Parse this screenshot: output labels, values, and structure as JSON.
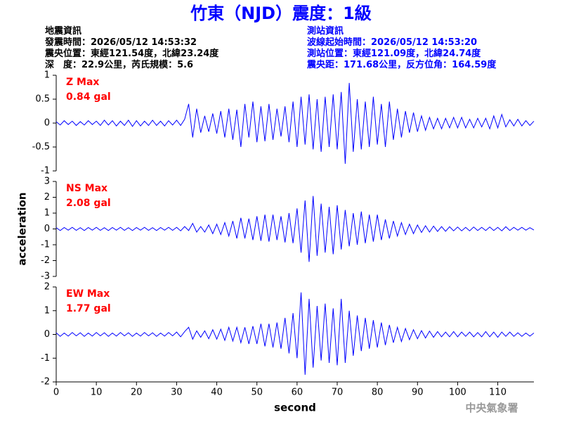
{
  "header": {
    "title": "竹東（NJD）震度：1級",
    "left": [
      "地震資訊",
      "發震時間：2026/05/12 14:53:32",
      "震央位置：東經121.54度，北緯23.24度",
      "深　度：22.9公里，芮氏規模：5.6"
    ],
    "right": [
      "測站資訊",
      "波線起始時間：2026/05/12 14:53:20",
      "測站位置：東經121.09度，北緯24.74度",
      "震央距：171.68公里，反方位角：164.59度"
    ]
  },
  "chart_data": [
    {
      "type": "line",
      "annotation": [
        "Z Max",
        "0.84 gal"
      ],
      "xlim": [
        0,
        119
      ],
      "ylim": [
        -1,
        1
      ],
      "yticks": [
        -1,
        -0.5,
        0,
        0.5,
        1
      ],
      "x": [
        0,
        1,
        2,
        3,
        4,
        5,
        6,
        7,
        8,
        9,
        10,
        11,
        12,
        13,
        14,
        15,
        16,
        17,
        18,
        19,
        20,
        21,
        22,
        23,
        24,
        25,
        26,
        27,
        28,
        29,
        30,
        31,
        32,
        33,
        34,
        35,
        36,
        37,
        38,
        39,
        40,
        41,
        42,
        43,
        44,
        45,
        46,
        47,
        48,
        49,
        50,
        51,
        52,
        53,
        54,
        55,
        56,
        57,
        58,
        59,
        60,
        61,
        62,
        63,
        64,
        65,
        66,
        67,
        68,
        69,
        70,
        71,
        72,
        73,
        74,
        75,
        76,
        77,
        78,
        79,
        80,
        81,
        82,
        83,
        84,
        85,
        86,
        87,
        88,
        89,
        90,
        91,
        92,
        93,
        94,
        95,
        96,
        97,
        98,
        99,
        100,
        101,
        102,
        103,
        104,
        105,
        106,
        107,
        108,
        109,
        110,
        111,
        112,
        113,
        114,
        115,
        116,
        117,
        118,
        119
      ],
      "series": [
        {
          "color": "#0000ff",
          "values": [
            0.03,
            -0.04,
            0.05,
            -0.03,
            0.04,
            -0.05,
            0.03,
            -0.04,
            0.05,
            -0.03,
            0.04,
            -0.05,
            0.06,
            -0.04,
            0.05,
            -0.06,
            0.04,
            -0.05,
            0.06,
            -0.07,
            0.05,
            -0.06,
            0.04,
            -0.05,
            0.06,
            -0.05,
            0.04,
            -0.06,
            0.05,
            -0.04,
            0.06,
            -0.05,
            0.08,
            0.4,
            -0.3,
            0.3,
            -0.2,
            0.15,
            -0.18,
            0.2,
            -0.22,
            0.25,
            -0.3,
            0.3,
            -0.35,
            0.28,
            -0.5,
            0.4,
            -0.3,
            0.45,
            -0.4,
            0.35,
            -0.38,
            0.4,
            -0.35,
            0.3,
            -0.28,
            0.35,
            -0.4,
            0.45,
            -0.5,
            0.55,
            -0.45,
            0.6,
            -0.55,
            0.5,
            -0.6,
            0.55,
            -0.5,
            0.6,
            -0.55,
            0.65,
            -0.85,
            0.84,
            -0.6,
            0.5,
            -0.55,
            0.45,
            -0.5,
            0.55,
            -0.45,
            0.4,
            -0.5,
            0.45,
            -0.35,
            0.3,
            -0.3,
            0.25,
            -0.2,
            0.22,
            -0.18,
            0.15,
            -0.15,
            0.12,
            -0.12,
            0.1,
            -0.12,
            0.1,
            -0.1,
            0.12,
            -0.1,
            0.12,
            -0.1,
            0.08,
            -0.1,
            0.1,
            -0.08,
            0.1,
            -0.12,
            0.15,
            -0.1,
            0.18,
            -0.08,
            0.07,
            -0.06,
            0.08,
            -0.06,
            0.05,
            -0.05,
            0.04
          ]
        }
      ]
    },
    {
      "type": "line",
      "annotation": [
        "NS Max",
        "2.08 gal"
      ],
      "ylabel": "acceleration",
      "xlim": [
        0,
        119
      ],
      "ylim": [
        -3,
        3
      ],
      "yticks": [
        -3,
        -2,
        -1,
        0,
        1,
        2,
        3
      ],
      "x": [
        0,
        1,
        2,
        3,
        4,
        5,
        6,
        7,
        8,
        9,
        10,
        11,
        12,
        13,
        14,
        15,
        16,
        17,
        18,
        19,
        20,
        21,
        22,
        23,
        24,
        25,
        26,
        27,
        28,
        29,
        30,
        31,
        32,
        33,
        34,
        35,
        36,
        37,
        38,
        39,
        40,
        41,
        42,
        43,
        44,
        45,
        46,
        47,
        48,
        49,
        50,
        51,
        52,
        53,
        54,
        55,
        56,
        57,
        58,
        59,
        60,
        61,
        62,
        63,
        64,
        65,
        66,
        67,
        68,
        69,
        70,
        71,
        72,
        73,
        74,
        75,
        76,
        77,
        78,
        79,
        80,
        81,
        82,
        83,
        84,
        85,
        86,
        87,
        88,
        89,
        90,
        91,
        92,
        93,
        94,
        95,
        96,
        97,
        98,
        99,
        100,
        101,
        102,
        103,
        104,
        105,
        106,
        107,
        108,
        109,
        110,
        111,
        112,
        113,
        114,
        115,
        116,
        117,
        118,
        119
      ],
      "series": [
        {
          "color": "#0000ff",
          "values": [
            0.08,
            -0.1,
            0.09,
            -0.08,
            0.1,
            -0.09,
            0.08,
            -0.1,
            0.09,
            -0.08,
            0.1,
            -0.09,
            0.08,
            -0.1,
            0.09,
            -0.08,
            0.1,
            -0.09,
            0.08,
            -0.1,
            0.09,
            -0.08,
            0.1,
            -0.09,
            0.08,
            -0.1,
            0.09,
            -0.08,
            0.1,
            -0.09,
            0.1,
            -0.12,
            0.15,
            -0.1,
            0.35,
            -0.2,
            0.15,
            -0.2,
            0.25,
            -0.3,
            0.3,
            -0.35,
            0.4,
            -0.45,
            0.5,
            -0.6,
            0.7,
            -0.6,
            0.65,
            -0.7,
            0.8,
            -0.75,
            0.9,
            -0.8,
            0.9,
            -0.7,
            0.8,
            -0.85,
            1.0,
            -0.9,
            1.3,
            -1.5,
            1.8,
            -2.08,
            2.08,
            -1.7,
            1.6,
            -1.5,
            1.4,
            -1.6,
            1.5,
            -1.3,
            1.2,
            -1.1,
            1.0,
            -1.0,
            1.1,
            -0.9,
            0.9,
            -0.8,
            0.9,
            -0.7,
            0.6,
            -0.6,
            0.5,
            -0.45,
            0.4,
            -0.35,
            0.3,
            -0.3,
            0.25,
            -0.22,
            0.2,
            -0.2,
            0.18,
            -0.16,
            0.15,
            -0.15,
            0.14,
            -0.12,
            0.12,
            -0.12,
            0.1,
            -0.12,
            0.12,
            -0.1,
            0.1,
            -0.1,
            0.12,
            -0.1,
            0.1,
            -0.12,
            0.14,
            -0.1,
            0.1,
            -0.08,
            0.1,
            -0.08,
            0.08,
            -0.07
          ]
        }
      ]
    },
    {
      "type": "line",
      "annotation": [
        "EW Max",
        "1.77 gal"
      ],
      "xlabel": "second",
      "xlim": [
        0,
        119
      ],
      "ylim": [
        -2,
        2
      ],
      "yticks": [
        -2,
        -1,
        0,
        1,
        2
      ],
      "xticks": [
        0,
        10,
        20,
        30,
        40,
        50,
        60,
        70,
        80,
        90,
        100,
        110
      ],
      "x": [
        0,
        1,
        2,
        3,
        4,
        5,
        6,
        7,
        8,
        9,
        10,
        11,
        12,
        13,
        14,
        15,
        16,
        17,
        18,
        19,
        20,
        21,
        22,
        23,
        24,
        25,
        26,
        27,
        28,
        29,
        30,
        31,
        32,
        33,
        34,
        35,
        36,
        37,
        38,
        39,
        40,
        41,
        42,
        43,
        44,
        45,
        46,
        47,
        48,
        49,
        50,
        51,
        52,
        53,
        54,
        55,
        56,
        57,
        58,
        59,
        60,
        61,
        62,
        63,
        64,
        65,
        66,
        67,
        68,
        69,
        70,
        71,
        72,
        73,
        74,
        75,
        76,
        77,
        78,
        79,
        80,
        81,
        82,
        83,
        84,
        85,
        86,
        87,
        88,
        89,
        90,
        91,
        92,
        93,
        94,
        95,
        96,
        97,
        98,
        99,
        100,
        101,
        102,
        103,
        104,
        105,
        106,
        107,
        108,
        109,
        110,
        111,
        112,
        113,
        114,
        115,
        116,
        117,
        118,
        119
      ],
      "series": [
        {
          "color": "#0000ff",
          "values": [
            0.07,
            -0.08,
            0.06,
            -0.07,
            0.08,
            -0.06,
            0.07,
            -0.08,
            0.06,
            -0.07,
            0.08,
            -0.06,
            0.07,
            -0.08,
            0.06,
            -0.07,
            0.08,
            -0.06,
            0.07,
            -0.08,
            0.06,
            -0.07,
            0.08,
            -0.06,
            0.07,
            -0.08,
            0.06,
            -0.07,
            0.08,
            -0.06,
            0.1,
            -0.1,
            0.12,
            0.3,
            -0.2,
            0.15,
            -0.12,
            0.15,
            -0.18,
            0.2,
            -0.2,
            0.22,
            -0.25,
            0.3,
            -0.28,
            0.3,
            -0.35,
            0.3,
            -0.4,
            0.35,
            -0.4,
            0.45,
            -0.5,
            0.45,
            -0.55,
            0.5,
            -0.6,
            0.7,
            -0.8,
            0.9,
            -1.0,
            1.77,
            -1.7,
            1.5,
            -1.4,
            1.2,
            -1.1,
            1.3,
            -1.2,
            1.1,
            -1.3,
            1.5,
            -1.2,
            1.0,
            -0.9,
            0.8,
            -0.7,
            0.7,
            -0.6,
            0.6,
            -0.55,
            0.5,
            -0.45,
            0.4,
            -0.35,
            0.3,
            -0.3,
            0.25,
            -0.22,
            0.2,
            -0.18,
            0.16,
            -0.15,
            0.14,
            -0.12,
            0.12,
            -0.1,
            0.1,
            -0.1,
            0.12,
            -0.1,
            0.1,
            -0.08,
            0.1,
            -0.1,
            0.08,
            -0.1,
            0.12,
            -0.1,
            0.1,
            -0.12,
            0.1,
            -0.08,
            0.1,
            -0.08,
            0.07,
            -0.08,
            0.06,
            -0.07,
            0.06
          ]
        }
      ]
    }
  ],
  "footer": "中央氣象署"
}
